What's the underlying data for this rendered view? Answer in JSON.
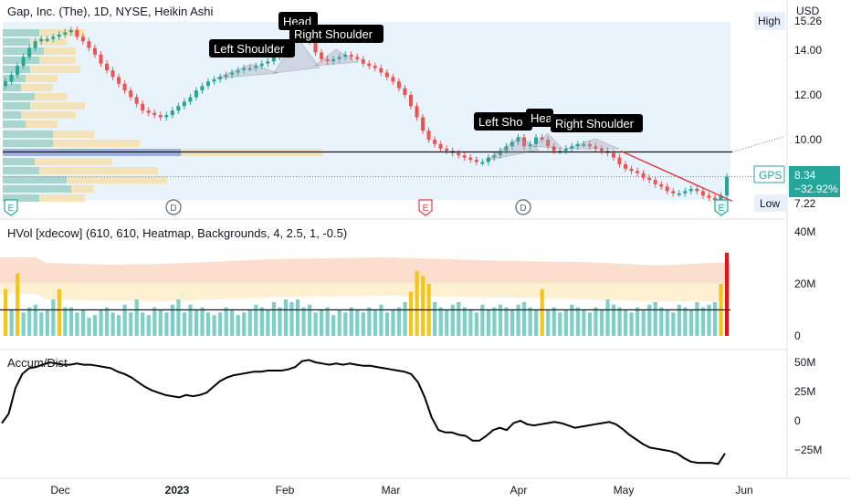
{
  "header": {
    "title": "Gap, Inc. (The), 1D, NYSE, Heikin Ashi",
    "currency": "USD"
  },
  "price_pane": {
    "y_ticks": [
      "14.00",
      "12.00",
      "10.00"
    ],
    "high_label": "High",
    "high_value": "15.26",
    "low_label": "Low",
    "low_value": "7.22",
    "last_symbol": "GPS",
    "last_price": "8.34",
    "last_change": "−32.92%",
    "neckline_price": 9.45,
    "pattern_labels": [
      "Left Shoulder",
      "Head",
      "Right Shoulder",
      "Left Sho",
      "Hea",
      "Right Shoulder"
    ],
    "event_markers": [
      "E",
      "D",
      "E",
      "D",
      "E"
    ]
  },
  "volume_pane": {
    "title": "HVol [xdecow] (610, 610, Heatmap, Backgrounds, 4, 2.5, 1, -0.5)",
    "y_ticks": [
      "40M",
      "20M",
      "0"
    ]
  },
  "ad_pane": {
    "title": "Accum/Dist",
    "y_ticks": [
      "50M",
      "25M",
      "0",
      "−25M"
    ]
  },
  "x_axis": {
    "labels": [
      "Dec",
      "2023",
      "Feb",
      "Mar",
      "Apr",
      "May",
      "Jun"
    ]
  },
  "colors": {
    "up": "#26a69a",
    "down": "#ef5350",
    "high_volume": "#f5c518",
    "extreme_volume": "#e5141b",
    "label_bg": "#000000",
    "trendline": "#e5373a"
  },
  "chart_data": [
    {
      "type": "candlestick",
      "title": "Gap, Inc. (The), 1D, NYSE, Heikin Ashi",
      "x_start": "2022-11-21",
      "x_end": "2023-05-26",
      "ylim": [
        7.2,
        15.3
      ],
      "close": [
        12.6,
        12.9,
        13.3,
        13.7,
        14.1,
        14.4,
        14.5,
        14.5,
        14.6,
        14.7,
        14.8,
        14.9,
        14.6,
        14.4,
        14.1,
        13.8,
        13.4,
        13.1,
        12.8,
        12.5,
        12.2,
        11.9,
        11.6,
        11.3,
        11.2,
        11.1,
        11.0,
        11.1,
        11.3,
        11.5,
        11.7,
        11.9,
        12.2,
        12.4,
        12.6,
        12.7,
        12.8,
        12.9,
        13.0,
        13.1,
        13.2,
        13.2,
        13.3,
        13.4,
        13.5,
        13.7,
        13.9,
        14.3,
        14.6,
        14.9,
        14.8,
        14.4,
        13.9,
        13.6,
        13.5,
        13.6,
        13.7,
        13.8,
        13.7,
        13.6,
        13.4,
        13.3,
        13.2,
        13.0,
        12.8,
        12.6,
        12.3,
        12.0,
        11.5,
        11.0,
        10.4,
        10.0,
        9.8,
        9.6,
        9.5,
        9.4,
        9.3,
        9.2,
        9.1,
        9.0,
        9.0,
        9.2,
        9.3,
        9.5,
        9.7,
        9.9,
        10.1,
        9.7,
        9.8,
        10.1,
        10.0,
        9.7,
        9.5,
        9.5,
        9.6,
        9.7,
        9.8,
        9.8,
        9.7,
        9.6,
        9.5,
        9.4,
        9.2,
        8.9,
        8.7,
        8.6,
        8.5,
        8.3,
        8.2,
        8.0,
        7.9,
        7.7,
        7.6,
        7.6,
        7.7,
        7.8,
        7.7,
        7.5,
        7.4,
        7.3,
        7.5,
        8.34
      ],
      "value_axis_ticks": [
        14,
        12,
        10
      ],
      "last_price": 8.34,
      "change_percent": -32.92,
      "high": 15.26,
      "low": 7.22,
      "horizontal_line": 9.45,
      "annotations": [
        "Left Shoulder",
        "Head",
        "Right Shoulder",
        "Left Sho",
        "Hea",
        "Right Shoulder"
      ]
    },
    {
      "type": "bar",
      "title": "HVol [xdecow] (610, 610, Heatmap, Backgrounds, 4, 2.5, 1, -0.5)",
      "unit": "M",
      "ylim": [
        0,
        40
      ],
      "values": [
        18,
        10,
        24,
        9,
        11,
        12,
        9,
        10,
        14,
        18,
        11,
        11,
        9,
        10,
        7,
        8,
        10,
        11,
        9,
        8,
        12,
        9,
        14,
        9,
        8,
        11,
        10,
        9,
        12,
        14,
        9,
        12,
        10,
        11,
        9,
        8,
        9,
        11,
        10,
        8,
        9,
        10,
        12,
        11,
        10,
        13,
        11,
        14,
        13,
        14,
        11,
        12,
        9,
        10,
        11,
        8,
        10,
        9,
        11,
        10,
        9,
        11,
        10,
        12,
        9,
        10,
        11,
        13,
        17,
        25,
        23,
        20,
        13,
        11,
        10,
        12,
        13,
        11,
        10,
        9,
        12,
        10,
        11,
        12,
        11,
        10,
        12,
        13,
        11,
        10,
        18,
        10,
        11,
        9,
        10,
        12,
        11,
        10,
        9,
        11,
        10,
        14,
        12,
        11,
        10,
        9,
        11,
        10,
        12,
        13,
        11,
        10,
        9,
        12,
        11,
        10,
        13,
        11,
        12,
        13,
        20,
        32
      ],
      "horizontal_line": 10
    },
    {
      "type": "line",
      "title": "Accum/Dist",
      "unit": "M",
      "ylim": [
        -35,
        55
      ],
      "value_axis_ticks": [
        50,
        25,
        0,
        -25
      ],
      "values": [
        -2,
        6,
        28,
        40,
        45,
        46,
        48,
        50,
        49,
        48,
        48,
        49,
        48,
        48,
        47,
        46,
        45,
        42,
        40,
        37,
        33,
        29,
        26,
        24,
        22,
        21,
        20,
        22,
        21,
        22,
        24,
        29,
        34,
        37,
        39,
        40,
        41,
        42,
        42,
        43,
        43,
        43,
        44,
        46,
        51,
        52,
        50,
        49,
        48,
        49,
        48,
        49,
        48,
        47,
        47,
        46,
        45,
        44,
        43,
        42,
        40,
        33,
        20,
        3,
        -8,
        -10,
        -10,
        -12,
        -13,
        -17,
        -17,
        -13,
        -8,
        -6,
        -8,
        -2,
        0,
        -3,
        -4,
        -3,
        -2,
        -1,
        -2,
        -4,
        -6,
        -5,
        -4,
        -3,
        -2,
        -1,
        -3,
        -7,
        -12,
        -16,
        -20,
        -23,
        -24,
        -25,
        -26,
        -28,
        -32,
        -35,
        -36,
        -36,
        -36,
        -37,
        -28
      ]
    }
  ]
}
